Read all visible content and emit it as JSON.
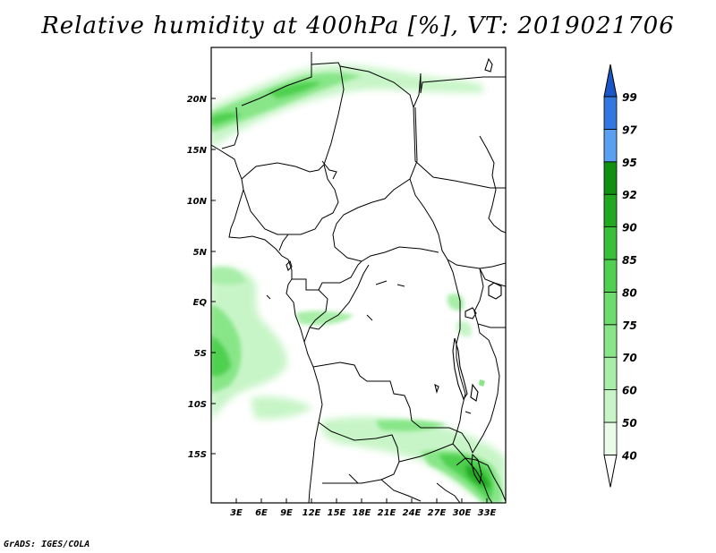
{
  "title": "Relative humidity at 400hPa [%], VT: 2019021706",
  "credit": "GrADS: IGES/COLA",
  "map": {
    "lat_labels": [
      "20N",
      "15N",
      "10N",
      "5N",
      "EQ",
      "5S",
      "10S",
      "15S"
    ],
    "lon_labels": [
      "3E",
      "6E",
      "9E",
      "12E",
      "15E",
      "18E",
      "21E",
      "24E",
      "27E",
      "30E",
      "33E"
    ]
  },
  "colorbar": {
    "levels": [
      "40",
      "50",
      "60",
      "70",
      "75",
      "80",
      "85",
      "90",
      "92",
      "95",
      "97",
      "99"
    ],
    "colors": [
      "#ffffff",
      "#e8fce8",
      "#c8f5c8",
      "#a8eea8",
      "#88e688",
      "#6cdc6c",
      "#50d050",
      "#38c038",
      "#20a820",
      "#109010",
      "#5aa0f0",
      "#3278e0",
      "#1a56c8"
    ]
  }
}
